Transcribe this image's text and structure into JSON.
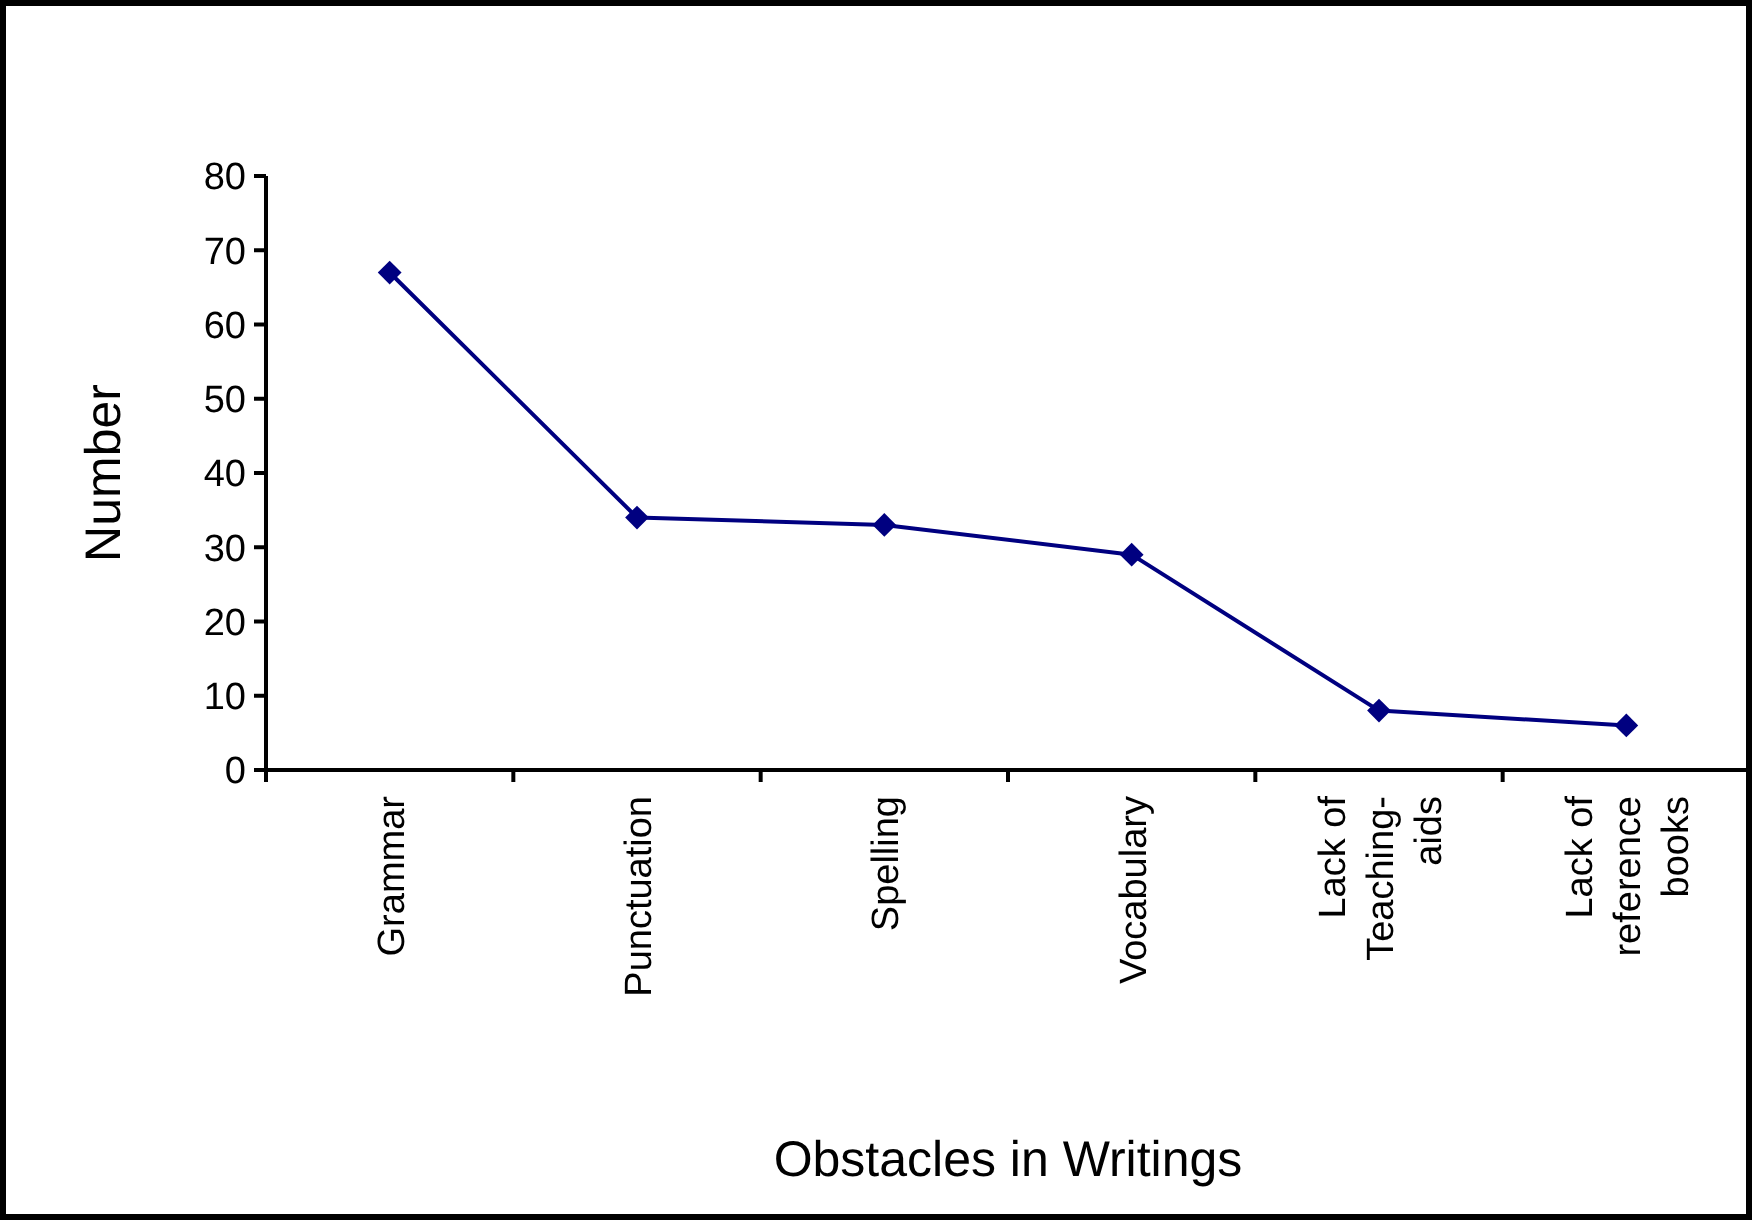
{
  "chart_data": {
    "type": "line",
    "xlabel": "Obstacles in Writings",
    "ylabel": "Number",
    "categories": [
      "Grammar",
      "Punctuation",
      "Spelling",
      "Vocabulary",
      "Lack of Teaching-aids",
      "Lack of reference books"
    ],
    "series": [
      {
        "color": "#000080",
        "values": [
          67,
          34,
          33,
          29,
          8,
          6
        ]
      }
    ],
    "ylim": [
      0,
      80
    ],
    "yticks": [
      0,
      10,
      20,
      30,
      40,
      50,
      60,
      70,
      80
    ],
    "marker": "diamond",
    "line_style": "solid"
  }
}
